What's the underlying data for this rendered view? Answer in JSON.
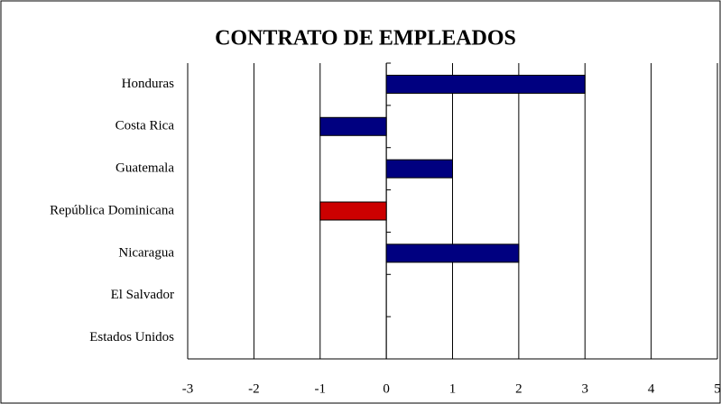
{
  "chart_data": {
    "type": "barh",
    "title": "CONTRATO DE EMPLEADOS",
    "categories": [
      "Honduras",
      "Costa Rica",
      "Guatemala",
      "República Dominicana",
      "Nicaragua",
      "El Salvador",
      "Estados Unidos"
    ],
    "values": [
      3,
      -1,
      1,
      -1,
      2,
      0,
      0
    ],
    "colors": [
      "#000080",
      "#000080",
      "#000080",
      "#cc0000",
      "#000080",
      "#000080",
      "#000080"
    ],
    "xlim": [
      -3,
      5
    ],
    "xticks": [
      -3,
      -2,
      -1,
      0,
      1,
      2,
      3,
      4,
      5
    ],
    "grid": true
  }
}
